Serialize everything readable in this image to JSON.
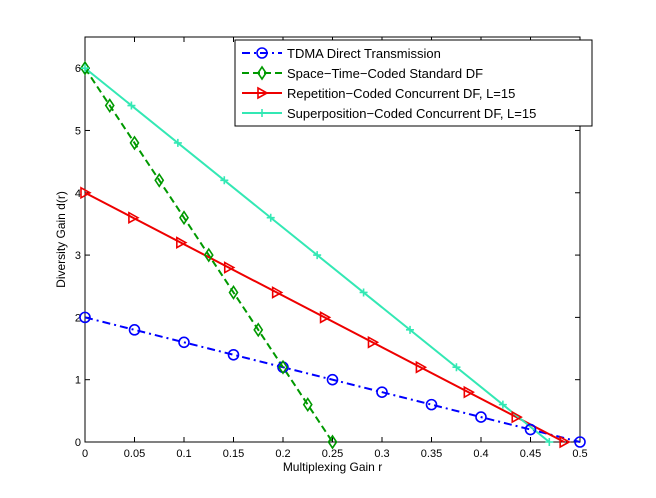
{
  "chart_data": {
    "type": "line",
    "title": "",
    "xlabel": "Multiplexing Gain r",
    "ylabel": "Diversity Gain d(r)",
    "xlim": [
      0,
      0.5
    ],
    "ylim": [
      0,
      6.5
    ],
    "xticks": [
      0,
      0.05,
      0.1,
      0.15,
      0.2,
      0.25,
      0.3,
      0.35,
      0.4,
      0.45,
      0.5
    ],
    "xtick_labels": [
      "0",
      "0.05",
      "0.1",
      "0.15",
      "0.2",
      "0.25",
      "0.3",
      "0.35",
      "0.4",
      "0.45",
      "0.5"
    ],
    "yticks": [
      0,
      1,
      2,
      3,
      4,
      5,
      6
    ],
    "ytick_labels": [
      "0",
      "1",
      "2",
      "3",
      "4",
      "5",
      "6"
    ],
    "grid": false,
    "legend_position": "top-right",
    "series": [
      {
        "name": "TDMA Direct Transmission",
        "color": "#0000ff",
        "line_style": "dashdot",
        "marker": "circle",
        "points": [
          [
            0,
            2
          ],
          [
            0.5,
            0
          ]
        ],
        "marker_points": [
          [
            0,
            2
          ],
          [
            0.05,
            1.8
          ],
          [
            0.1,
            1.6
          ],
          [
            0.15,
            1.4
          ],
          [
            0.2,
            1.2
          ],
          [
            0.25,
            1.0
          ],
          [
            0.3,
            0.8
          ],
          [
            0.35,
            0.6
          ],
          [
            0.4,
            0.4
          ],
          [
            0.45,
            0.2
          ],
          [
            0.5,
            0
          ]
        ]
      },
      {
        "name": "Space−Time−Coded Standard DF",
        "color": "#009900",
        "line_style": "dashed",
        "marker": "diamond",
        "points": [
          [
            0,
            6
          ],
          [
            0.25,
            0
          ]
        ],
        "marker_points": [
          [
            0,
            6
          ],
          [
            0.025,
            5.4
          ],
          [
            0.05,
            4.8
          ],
          [
            0.075,
            4.2
          ],
          [
            0.1,
            3.6
          ],
          [
            0.125,
            3.0
          ],
          [
            0.15,
            2.4
          ],
          [
            0.175,
            1.8
          ],
          [
            0.2,
            1.2
          ],
          [
            0.225,
            0.6
          ],
          [
            0.25,
            0
          ]
        ]
      },
      {
        "name": "Repetition−Coded Concurrent DF, L=15",
        "color": "#ee0000",
        "line_style": "solid",
        "marker": "triangle-right",
        "points": [
          [
            0,
            4
          ],
          [
            0.484,
            0
          ]
        ],
        "marker_points": [
          [
            0,
            4
          ],
          [
            0.0484,
            3.6
          ],
          [
            0.0968,
            3.2
          ],
          [
            0.1452,
            2.8
          ],
          [
            0.1936,
            2.4
          ],
          [
            0.242,
            2.0
          ],
          [
            0.2904,
            1.6
          ],
          [
            0.3388,
            1.2
          ],
          [
            0.3872,
            0.8
          ],
          [
            0.4356,
            0.4
          ],
          [
            0.484,
            0
          ]
        ]
      },
      {
        "name": "Superposition−Coded Concurrent DF, L=15",
        "color": "#33e8b4",
        "line_style": "solid",
        "marker": "plus",
        "points": [
          [
            0,
            6
          ],
          [
            0.469,
            0
          ]
        ],
        "marker_points": [
          [
            0,
            6
          ],
          [
            0.0469,
            5.4
          ],
          [
            0.0938,
            4.8
          ],
          [
            0.1407,
            4.2
          ],
          [
            0.1876,
            3.6
          ],
          [
            0.2345,
            3.0
          ],
          [
            0.2814,
            2.4
          ],
          [
            0.3283,
            1.8
          ],
          [
            0.3752,
            1.2
          ],
          [
            0.4221,
            0.6
          ],
          [
            0.469,
            0
          ]
        ]
      }
    ]
  }
}
